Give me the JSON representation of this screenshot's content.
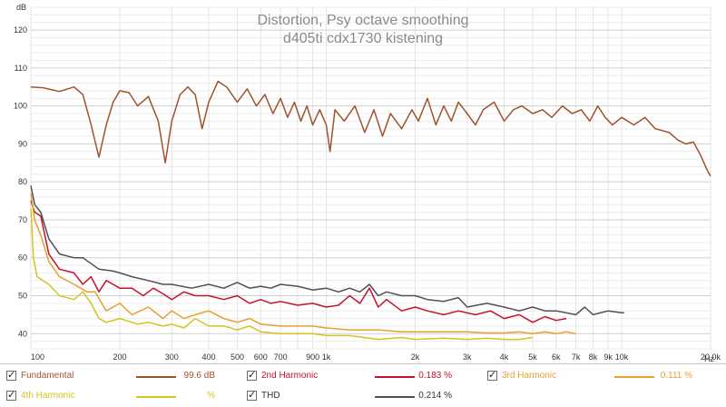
{
  "chart_data": {
    "type": "line",
    "title": "Distortion, Psy octave smoothing",
    "subtitle": "d405ti cdx1730 kistening",
    "ylabel": "dB",
    "xlabel": "Hz",
    "x_scale": "log",
    "xlim": [
      100,
      20000
    ],
    "ylim": [
      36,
      126
    ],
    "grid": true,
    "y_ticks": [
      40,
      50,
      60,
      70,
      80,
      90,
      100,
      110,
      120
    ],
    "x_ticks": [
      {
        "v": 100,
        "label": "100"
      },
      {
        "v": 200,
        "label": "200"
      },
      {
        "v": 300,
        "label": "300"
      },
      {
        "v": 400,
        "label": "400"
      },
      {
        "v": 500,
        "label": "500"
      },
      {
        "v": 600,
        "label": "600"
      },
      {
        "v": 700,
        "label": "700"
      },
      {
        "v": 900,
        "label": "900"
      },
      {
        "v": 1000,
        "label": "1k"
      },
      {
        "v": 2000,
        "label": "2k"
      },
      {
        "v": 3000,
        "label": "3k"
      },
      {
        "v": 4000,
        "label": "4k"
      },
      {
        "v": 5000,
        "label": "5k"
      },
      {
        "v": 6000,
        "label": "6k"
      },
      {
        "v": 7000,
        "label": "7k"
      },
      {
        "v": 8000,
        "label": "8k"
      },
      {
        "v": 9000,
        "label": "9k"
      },
      {
        "v": 10000,
        "label": "10k"
      },
      {
        "v": 20000,
        "label": "20.0k"
      }
    ],
    "series": [
      {
        "name": "Fundamental",
        "color": "#a0522d",
        "points": [
          [
            100,
            105
          ],
          [
            110,
            104.8
          ],
          [
            125,
            103.8
          ],
          [
            140,
            105
          ],
          [
            150,
            103
          ],
          [
            160,
            95
          ],
          [
            170,
            86.5
          ],
          [
            180,
            95
          ],
          [
            190,
            101
          ],
          [
            200,
            104
          ],
          [
            215,
            103.5
          ],
          [
            230,
            100
          ],
          [
            250,
            102.5
          ],
          [
            270,
            96
          ],
          [
            285,
            85
          ],
          [
            300,
            96
          ],
          [
            320,
            103
          ],
          [
            340,
            105
          ],
          [
            360,
            103
          ],
          [
            380,
            94
          ],
          [
            400,
            101
          ],
          [
            430,
            106.5
          ],
          [
            460,
            105
          ],
          [
            500,
            101
          ],
          [
            540,
            104.5
          ],
          [
            580,
            100
          ],
          [
            620,
            103
          ],
          [
            660,
            98
          ],
          [
            700,
            102
          ],
          [
            740,
            97
          ],
          [
            780,
            101
          ],
          [
            820,
            96
          ],
          [
            860,
            100
          ],
          [
            900,
            95
          ],
          [
            950,
            99
          ],
          [
            1000,
            95
          ],
          [
            1030,
            88
          ],
          [
            1070,
            99
          ],
          [
            1150,
            96
          ],
          [
            1250,
            100
          ],
          [
            1350,
            93
          ],
          [
            1450,
            99
          ],
          [
            1550,
            92
          ],
          [
            1650,
            98
          ],
          [
            1800,
            94
          ],
          [
            1950,
            99
          ],
          [
            2050,
            96
          ],
          [
            2200,
            102
          ],
          [
            2350,
            95
          ],
          [
            2500,
            100
          ],
          [
            2650,
            96
          ],
          [
            2800,
            101
          ],
          [
            3000,
            98
          ],
          [
            3200,
            95
          ],
          [
            3400,
            99
          ],
          [
            3700,
            101
          ],
          [
            4000,
            96
          ],
          [
            4300,
            99
          ],
          [
            4600,
            100
          ],
          [
            5000,
            98
          ],
          [
            5400,
            99
          ],
          [
            5800,
            97
          ],
          [
            6300,
            100
          ],
          [
            6800,
            98
          ],
          [
            7300,
            99
          ],
          [
            7800,
            96
          ],
          [
            8300,
            100
          ],
          [
            8800,
            97
          ],
          [
            9300,
            95
          ],
          [
            10000,
            97
          ],
          [
            11000,
            95
          ],
          [
            12000,
            97
          ],
          [
            13000,
            94
          ],
          [
            14500,
            93
          ],
          [
            15500,
            91
          ],
          [
            16500,
            90
          ],
          [
            17500,
            90.5
          ],
          [
            18500,
            87
          ],
          [
            19500,
            83
          ],
          [
            20000,
            81.5
          ]
        ]
      },
      {
        "name": "2nd Harmonic",
        "color": "#c8102e",
        "points": [
          [
            100,
            75
          ],
          [
            103,
            72
          ],
          [
            108,
            71
          ],
          [
            115,
            61
          ],
          [
            125,
            57
          ],
          [
            140,
            56
          ],
          [
            150,
            53
          ],
          [
            160,
            55
          ],
          [
            170,
            51
          ],
          [
            180,
            54
          ],
          [
            200,
            52
          ],
          [
            220,
            52
          ],
          [
            240,
            50
          ],
          [
            260,
            52
          ],
          [
            280,
            50.5
          ],
          [
            300,
            49
          ],
          [
            330,
            51
          ],
          [
            360,
            50
          ],
          [
            400,
            50
          ],
          [
            450,
            49
          ],
          [
            500,
            50
          ],
          [
            550,
            48
          ],
          [
            600,
            49
          ],
          [
            650,
            48
          ],
          [
            700,
            48.5
          ],
          [
            800,
            47.5
          ],
          [
            900,
            48
          ],
          [
            1000,
            47
          ],
          [
            1100,
            47.5
          ],
          [
            1200,
            50
          ],
          [
            1300,
            48
          ],
          [
            1400,
            52
          ],
          [
            1500,
            47
          ],
          [
            1600,
            49
          ],
          [
            1800,
            46
          ],
          [
            2000,
            47
          ],
          [
            2200,
            46
          ],
          [
            2500,
            45
          ],
          [
            2800,
            46
          ],
          [
            3200,
            45
          ],
          [
            3600,
            46
          ],
          [
            4000,
            44
          ],
          [
            4500,
            45
          ],
          [
            5000,
            43
          ],
          [
            5500,
            44.5
          ],
          [
            6000,
            43.5
          ],
          [
            6500,
            44
          ]
        ]
      },
      {
        "name": "3rd Harmonic",
        "color": "#e8a030",
        "points": [
          [
            100,
            77
          ],
          [
            103,
            70
          ],
          [
            108,
            66
          ],
          [
            115,
            59
          ],
          [
            125,
            55
          ],
          [
            140,
            53
          ],
          [
            155,
            51
          ],
          [
            165,
            51
          ],
          [
            180,
            46
          ],
          [
            200,
            48
          ],
          [
            220,
            45
          ],
          [
            250,
            47
          ],
          [
            280,
            44
          ],
          [
            300,
            46
          ],
          [
            330,
            44
          ],
          [
            360,
            45
          ],
          [
            400,
            46
          ],
          [
            450,
            44
          ],
          [
            500,
            43
          ],
          [
            550,
            44
          ],
          [
            600,
            42.5
          ],
          [
            700,
            42
          ],
          [
            800,
            42
          ],
          [
            900,
            42
          ],
          [
            1000,
            41.5
          ],
          [
            1200,
            41
          ],
          [
            1500,
            41
          ],
          [
            1800,
            40.5
          ],
          [
            2000,
            40.5
          ],
          [
            2500,
            40.5
          ],
          [
            3000,
            40.5
          ],
          [
            3500,
            40.2
          ],
          [
            4000,
            40.2
          ],
          [
            4500,
            40.5
          ],
          [
            5000,
            40
          ],
          [
            5500,
            40.5
          ],
          [
            6000,
            40
          ],
          [
            6500,
            40.5
          ],
          [
            7000,
            40
          ]
        ]
      },
      {
        "name": "4th Harmonic",
        "color": "#d4c420",
        "points": [
          [
            100,
            73
          ],
          [
            102,
            60
          ],
          [
            105,
            55
          ],
          [
            115,
            53
          ],
          [
            125,
            50
          ],
          [
            140,
            49
          ],
          [
            150,
            51
          ],
          [
            160,
            48
          ],
          [
            170,
            44
          ],
          [
            180,
            43
          ],
          [
            200,
            44
          ],
          [
            230,
            42.5
          ],
          [
            250,
            43
          ],
          [
            280,
            42
          ],
          [
            300,
            42.5
          ],
          [
            330,
            41.5
          ],
          [
            360,
            44
          ],
          [
            400,
            42
          ],
          [
            450,
            42
          ],
          [
            500,
            41
          ],
          [
            550,
            42
          ],
          [
            600,
            40.5
          ],
          [
            700,
            40
          ],
          [
            800,
            40
          ],
          [
            900,
            40
          ],
          [
            1000,
            39.5
          ],
          [
            1200,
            39.5
          ],
          [
            1500,
            38.5
          ],
          [
            1800,
            39
          ],
          [
            2000,
            38.5
          ],
          [
            2500,
            38.8
          ],
          [
            3000,
            38.5
          ],
          [
            3500,
            38.8
          ],
          [
            4000,
            38.5
          ],
          [
            4500,
            38.5
          ],
          [
            5000,
            39
          ]
        ]
      },
      {
        "name": "THD",
        "color": "#505050",
        "points": [
          [
            100,
            79
          ],
          [
            103,
            74
          ],
          [
            108,
            72
          ],
          [
            115,
            65
          ],
          [
            125,
            61
          ],
          [
            140,
            60
          ],
          [
            150,
            60
          ],
          [
            170,
            57
          ],
          [
            190,
            56.5
          ],
          [
            200,
            56
          ],
          [
            220,
            55
          ],
          [
            250,
            54
          ],
          [
            280,
            53
          ],
          [
            300,
            53
          ],
          [
            350,
            52
          ],
          [
            400,
            53
          ],
          [
            450,
            52
          ],
          [
            500,
            53.5
          ],
          [
            550,
            52
          ],
          [
            600,
            52.5
          ],
          [
            650,
            52
          ],
          [
            700,
            53
          ],
          [
            800,
            52.5
          ],
          [
            900,
            51.5
          ],
          [
            1000,
            52
          ],
          [
            1100,
            51
          ],
          [
            1200,
            52
          ],
          [
            1300,
            51
          ],
          [
            1400,
            53
          ],
          [
            1500,
            50
          ],
          [
            1600,
            51
          ],
          [
            1800,
            50
          ],
          [
            2000,
            50
          ],
          [
            2200,
            49
          ],
          [
            2500,
            48.5
          ],
          [
            2800,
            49.5
          ],
          [
            3000,
            47
          ],
          [
            3500,
            48
          ],
          [
            4000,
            47
          ],
          [
            4500,
            46
          ],
          [
            5000,
            47
          ],
          [
            5500,
            46
          ],
          [
            6000,
            46
          ],
          [
            7000,
            45
          ],
          [
            7500,
            47
          ],
          [
            8000,
            45
          ],
          [
            9000,
            46
          ],
          [
            10000,
            45.5
          ],
          [
            10200,
            45.5
          ]
        ]
      }
    ]
  },
  "legend": [
    {
      "name": "Fundamental",
      "value": "99.6 dB",
      "checked": true,
      "text_color": "#a0522d",
      "swatch": "#a0522d"
    },
    {
      "name": "2nd Harmonic",
      "value": "0.183 %",
      "checked": true,
      "text_color": "#c8102e",
      "swatch": "#c8102e"
    },
    {
      "name": "3rd Harmonic",
      "value": "0.111 %",
      "checked": true,
      "text_color": "#e8a030",
      "swatch": "#e8a030"
    },
    {
      "name": "4th Harmonic",
      "value": "%",
      "checked": true,
      "text_color": "#d4c420",
      "swatch": "#d4c420"
    },
    {
      "name": "THD",
      "value": "0.214 %",
      "checked": true,
      "text_color": "#333333",
      "swatch": "#505050"
    }
  ],
  "icons": {
    "checkbox": "check-mark-icon"
  }
}
